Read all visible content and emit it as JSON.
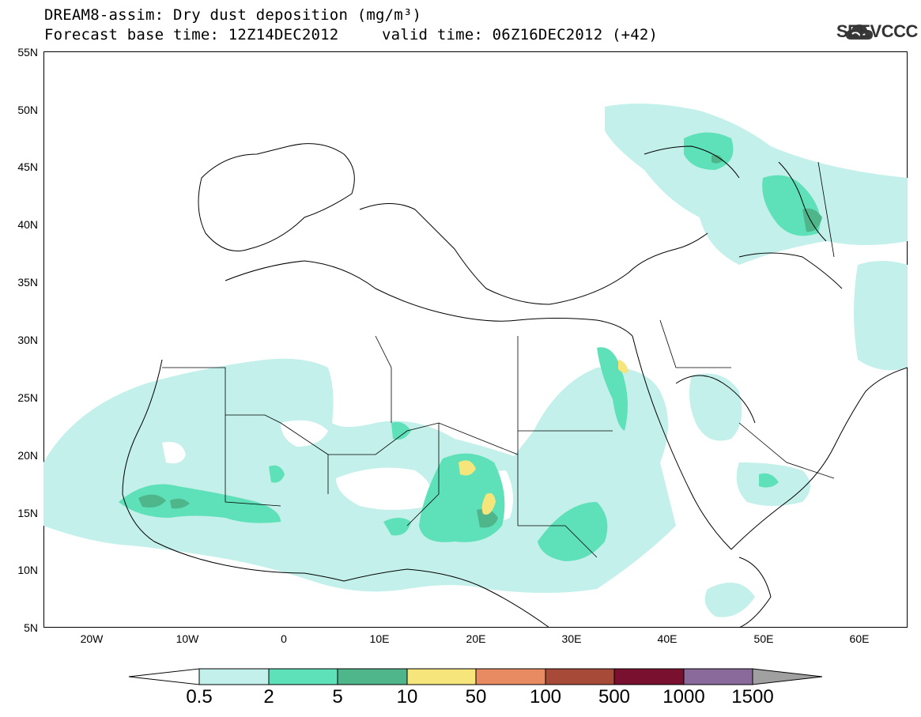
{
  "title": {
    "line1": "DREAM8-assim: Dry dust deposition (mg/m³)",
    "line2_left": "Forecast base time: 12Z14DEC2012",
    "line2_right": "valid time: 06Z16DEC2012 (+42)"
  },
  "logo": {
    "text": "SEEVCCC",
    "icon": "cloud-icon"
  },
  "axes": {
    "lat_ticks": [
      "55N",
      "50N",
      "45N",
      "40N",
      "35N",
      "30N",
      "25N",
      "20N",
      "15N",
      "10N",
      "5N"
    ],
    "lon_ticks": [
      "20W",
      "10W",
      "0",
      "10E",
      "20E",
      "30E",
      "40E",
      "50E",
      "60E"
    ],
    "lon_range": [
      -25,
      65
    ],
    "lat_range": [
      5,
      55
    ]
  },
  "legend": {
    "labels": [
      "0.5",
      "2",
      "5",
      "10",
      "50",
      "100",
      "500",
      "1000",
      "1500"
    ],
    "colors": [
      "#c3f0eb",
      "#5ee0b8",
      "#4fb58a",
      "#f5e57a",
      "#e88a62",
      "#a84a38",
      "#7a1030",
      "#8a6a9a"
    ],
    "under_color": "#ffffff",
    "over_color": "#a0a0a0"
  },
  "colors": {
    "level1": "#c3f0eb",
    "level2": "#5ee0b8",
    "level3": "#4fb58a",
    "level4": "#f5e57a"
  }
}
